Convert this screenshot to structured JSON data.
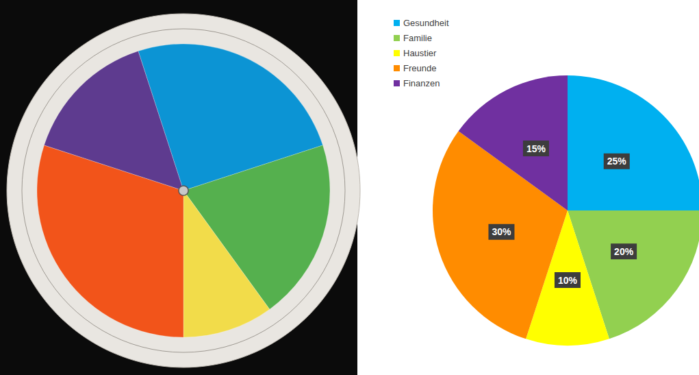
{
  "chart_data": [
    {
      "type": "pie",
      "values": [
        25,
        20,
        10,
        30,
        15
      ],
      "colors": [
        "#0c94d4",
        "#55b04e",
        "#f2dc4a",
        "#f2541a",
        "#5e3b8f"
      ]
    },
    {
      "type": "pie",
      "categories": [
        "Gesundheit",
        "Familie",
        "Haustier",
        "Freunde",
        "Finanzen"
      ],
      "values": [
        25,
        20,
        10,
        30,
        15
      ],
      "value_labels": [
        "25%",
        "20%",
        "10%",
        "30%",
        "15%"
      ],
      "colors": [
        "#00b0f0",
        "#92d050",
        "#ffff00",
        "#ff8c00",
        "#7030a0"
      ],
      "legend": "top-left",
      "data_labels": true
    }
  ]
}
